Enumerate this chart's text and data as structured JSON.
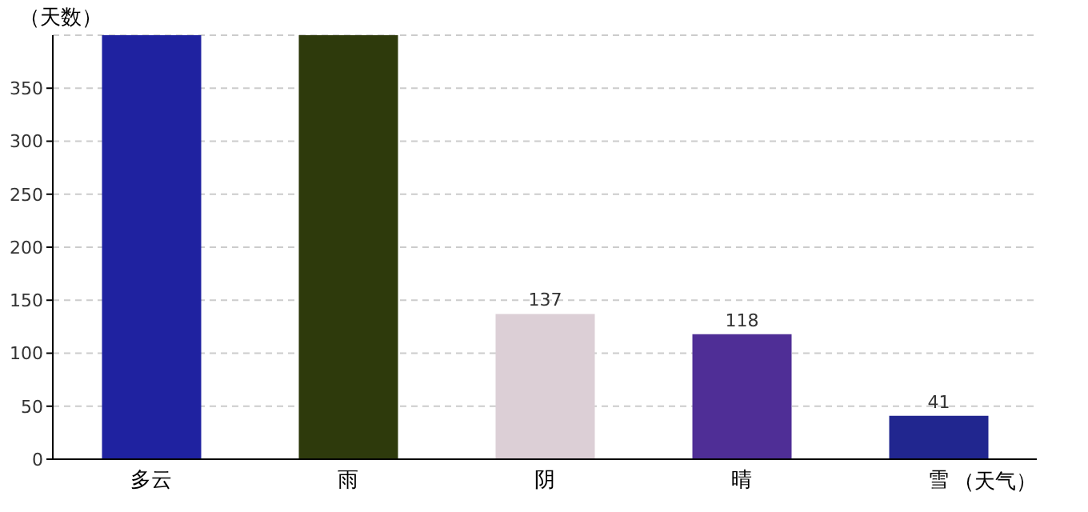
{
  "chart_data": {
    "type": "bar",
    "xlabel": "（天气）",
    "ylabel": "（天数）",
    "categories": [
      "多云",
      "雨",
      "阴",
      "晴",
      "雪"
    ],
    "values": [
      400,
      400,
      137,
      118,
      41
    ],
    "value_labels": [
      null,
      null,
      "137",
      "118",
      "41"
    ],
    "colors": [
      "#1f22a0",
      "#2e3a0c",
      "#dccfd6",
      "#4f2e96",
      "#21268f"
    ],
    "ylim": [
      0,
      400
    ],
    "yticks": [
      0,
      50,
      100,
      150,
      200,
      250,
      300,
      350
    ],
    "grid": "y"
  }
}
